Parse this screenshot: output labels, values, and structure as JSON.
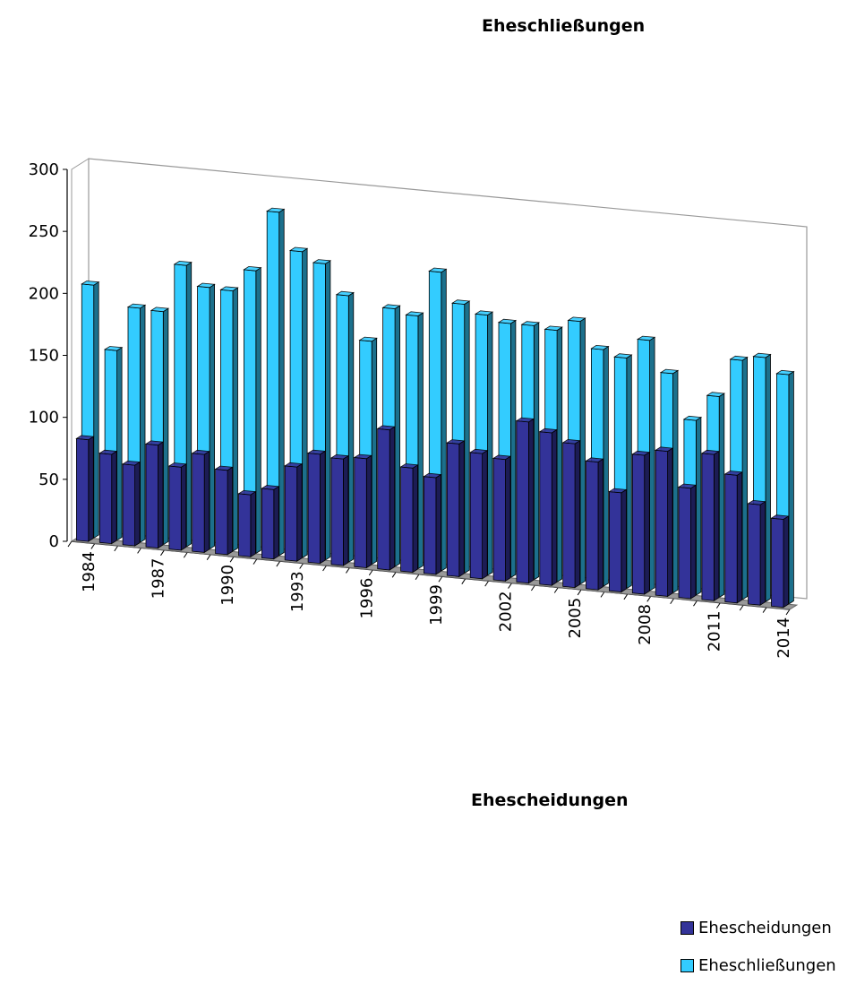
{
  "chart_data": {
    "type": "bar",
    "title": "Eheschließungen",
    "subtitle": "Ehescheidungen",
    "xlabel": "",
    "ylabel": "",
    "ylim": [
      0,
      300
    ],
    "yticks": [
      "0",
      "50",
      "100",
      "150",
      "200",
      "250",
      "300"
    ],
    "categories": [
      "1984",
      "1985",
      "1986",
      "1987",
      "1988",
      "1989",
      "1990",
      "1991",
      "1992",
      "1993",
      "1994",
      "1995",
      "1996",
      "1997",
      "1998",
      "1999",
      "2000",
      "2001",
      "2002",
      "2003",
      "2004",
      "2005",
      "2006",
      "2007",
      "2008",
      "2009",
      "2010",
      "2011",
      "2012",
      "2013",
      "2014"
    ],
    "tick_labels": [
      "1984",
      "1987",
      "1990",
      "1993",
      "1996",
      "1999",
      "2002",
      "2005",
      "2008",
      "2011",
      "2014"
    ],
    "series": [
      {
        "name": "Ehescheidungen",
        "color": "#333399",
        "values": [
          82,
          72,
          65,
          83,
          67,
          79,
          68,
          50,
          56,
          76,
          88,
          86,
          88,
          113,
          84,
          78,
          107,
          101,
          98,
          130,
          123,
          116,
          103,
          80,
          112,
          117,
          89,
          118,
          103,
          81,
          71
        ]
      },
      {
        "name": "Eheschließungen",
        "color": "#33CCFF",
        "values": [
          204,
          153,
          189,
          188,
          227,
          211,
          210,
          228,
          277,
          247,
          239,
          215,
          180,
          208,
          204,
          241,
          217,
          210,
          205,
          205,
          203,
          212,
          191,
          186,
          202,
          177,
          141,
          162,
          193,
          197,
          185
        ]
      }
    ],
    "grid": false,
    "legend_position": "bottom-right",
    "style": "3d-clustered-depth"
  }
}
